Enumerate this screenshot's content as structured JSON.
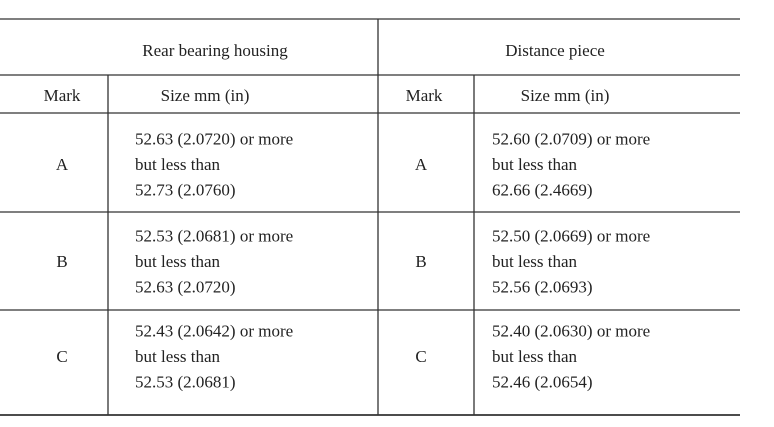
{
  "table": {
    "groups": [
      "Rear bearing housing",
      "Distance piece"
    ],
    "columns": [
      "Mark",
      "Size   mm (in)",
      "Mark",
      "Size   mm (in)"
    ],
    "rows": [
      [
        "A",
        [
          "52.63 (2.0720) or more",
          "but less than",
          "52.73 (2.0760)"
        ],
        "A",
        [
          "52.60 (2.0709) or more",
          "but less than",
          "62.66 (2.4669)"
        ]
      ],
      [
        "B",
        [
          "52.53 (2.0681) or more",
          "but less than",
          "52.63 (2.0720)"
        ],
        "B",
        [
          "52.50 (2.0669) or more",
          "but less than",
          "52.56 (2.0693)"
        ]
      ],
      [
        "C",
        [
          "52.43 (2.0642) or more",
          "but less than",
          "52.53 (2.0681)"
        ],
        "C",
        [
          "52.40 (2.0630) or more",
          "but less than",
          "52.46 (2.0654)"
        ]
      ]
    ]
  }
}
